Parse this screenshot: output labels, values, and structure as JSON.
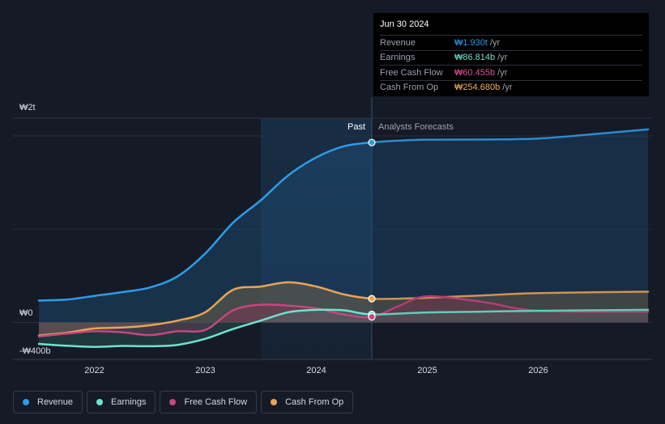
{
  "tooltip": {
    "date": "Jun 30 2024",
    "rows": [
      {
        "label": "Revenue",
        "value": "₩1.930t",
        "unit": "/yr",
        "color": "#2f9be8"
      },
      {
        "label": "Earnings",
        "value": "₩86.814b",
        "unit": "/yr",
        "color": "#6fe3cf"
      },
      {
        "label": "Free Cash Flow",
        "value": "₩60.455b",
        "unit": "/yr",
        "color": "#e0509a"
      },
      {
        "label": "Cash From Op",
        "value": "₩254.680b",
        "unit": "/yr",
        "color": "#f0b060"
      }
    ]
  },
  "legend": [
    {
      "label": "Revenue",
      "color": "#2f9be8"
    },
    {
      "label": "Earnings",
      "color": "#6fe3cf"
    },
    {
      "label": "Free Cash Flow",
      "color": "#c6467f"
    },
    {
      "label": "Cash From Op",
      "color": "#e8a457"
    }
  ],
  "chart_data": {
    "type": "line",
    "y_unit": "₩ billions",
    "ylim": [
      -400,
      2200
    ],
    "xlim": [
      2021.5,
      2026.99
    ],
    "y_tick_labels": [
      {
        "value": 2000,
        "label": "₩2t"
      },
      {
        "value": 0,
        "label": "₩0"
      },
      {
        "value": -400,
        "label": "-₩400b"
      }
    ],
    "x_tick_labels": [
      {
        "value": 2022,
        "label": "2022"
      },
      {
        "value": 2023,
        "label": "2023"
      },
      {
        "value": 2024,
        "label": "2024"
      },
      {
        "value": 2025,
        "label": "2025"
      },
      {
        "value": 2026,
        "label": "2026"
      }
    ],
    "past_label": "Past",
    "forecast_label": "Analysts Forecasts",
    "highlight_start": 2023.5,
    "divider_x": 2024.5,
    "series": [
      {
        "name": "Revenue",
        "color": "#2f9be8",
        "fill": true,
        "points": [
          [
            2021.5,
            235
          ],
          [
            2021.75,
            245
          ],
          [
            2022.0,
            285
          ],
          [
            2022.25,
            325
          ],
          [
            2022.5,
            375
          ],
          [
            2022.75,
            495
          ],
          [
            2023.0,
            740
          ],
          [
            2023.25,
            1070
          ],
          [
            2023.5,
            1310
          ],
          [
            2023.75,
            1580
          ],
          [
            2024.0,
            1770
          ],
          [
            2024.25,
            1890
          ],
          [
            2024.5,
            1930
          ],
          [
            2024.75,
            1950
          ],
          [
            2025.0,
            1960
          ],
          [
            2025.5,
            1962
          ],
          [
            2026.0,
            1972
          ],
          [
            2026.5,
            2020
          ],
          [
            2026.99,
            2070
          ]
        ]
      },
      {
        "name": "Earnings",
        "color": "#6fe3cf",
        "fill": true,
        "points": [
          [
            2021.5,
            -230
          ],
          [
            2021.75,
            -250
          ],
          [
            2022.0,
            -262
          ],
          [
            2022.25,
            -252
          ],
          [
            2022.5,
            -255
          ],
          [
            2022.75,
            -240
          ],
          [
            2023.0,
            -175
          ],
          [
            2023.25,
            -70
          ],
          [
            2023.5,
            20
          ],
          [
            2023.75,
            110
          ],
          [
            2024.0,
            135
          ],
          [
            2024.25,
            130
          ],
          [
            2024.5,
            87
          ],
          [
            2025.0,
            108
          ],
          [
            2025.5,
            116
          ],
          [
            2026.0,
            125
          ],
          [
            2026.99,
            135
          ]
        ]
      },
      {
        "name": "Free Cash Flow",
        "color": "#c6467f",
        "fill": true,
        "points": [
          [
            2021.5,
            -150
          ],
          [
            2021.75,
            -120
          ],
          [
            2022.0,
            -95
          ],
          [
            2022.25,
            -105
          ],
          [
            2022.5,
            -135
          ],
          [
            2022.75,
            -95
          ],
          [
            2023.0,
            -80
          ],
          [
            2023.25,
            130
          ],
          [
            2023.5,
            190
          ],
          [
            2023.75,
            180
          ],
          [
            2024.0,
            150
          ],
          [
            2024.25,
            85
          ],
          [
            2024.5,
            60
          ],
          [
            2024.75,
            180
          ],
          [
            2025.0,
            280
          ],
          [
            2025.5,
            220
          ],
          [
            2026.0,
            125
          ],
          [
            2026.99,
            115
          ]
        ]
      },
      {
        "name": "Cash From Op",
        "color": "#e8a457",
        "fill": true,
        "points": [
          [
            2021.5,
            -140
          ],
          [
            2021.75,
            -110
          ],
          [
            2022.0,
            -65
          ],
          [
            2022.25,
            -55
          ],
          [
            2022.5,
            -30
          ],
          [
            2022.75,
            20
          ],
          [
            2023.0,
            110
          ],
          [
            2023.25,
            350
          ],
          [
            2023.5,
            385
          ],
          [
            2023.75,
            430
          ],
          [
            2024.0,
            385
          ],
          [
            2024.25,
            300
          ],
          [
            2024.5,
            255
          ],
          [
            2024.75,
            255
          ],
          [
            2025.0,
            265
          ],
          [
            2025.5,
            290
          ],
          [
            2026.0,
            315
          ],
          [
            2026.99,
            330
          ]
        ]
      }
    ],
    "markers": [
      {
        "series": "Revenue",
        "x": 2024.5,
        "y": 1930
      },
      {
        "series": "Cash From Op",
        "x": 2024.5,
        "y": 255
      },
      {
        "series": "Earnings",
        "x": 2024.5,
        "y": 87
      },
      {
        "series": "Free Cash Flow",
        "x": 2024.5,
        "y": 60
      }
    ]
  }
}
